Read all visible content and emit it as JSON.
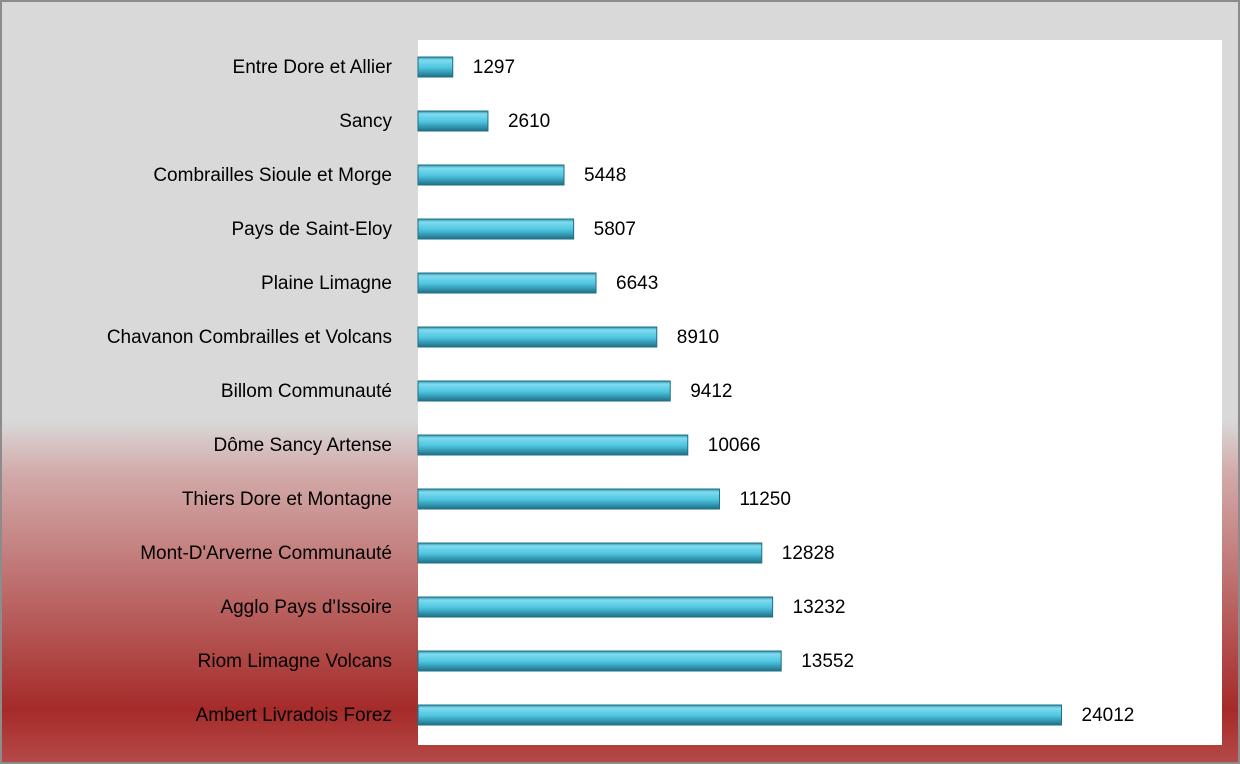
{
  "chart_data": {
    "type": "hbar",
    "categories": [
      "Entre Dore et Allier",
      "Sancy",
      "Combrailles Sioule et Morge",
      "Pays de Saint-Eloy",
      "Plaine Limagne",
      "Chavanon Combrailles et Volcans",
      "Billom Communauté",
      "Dôme Sancy Artense",
      "Thiers Dore et Montagne",
      "Mont-D'Arverne Communauté",
      "Agglo Pays d'Issoire",
      "Riom Limagne Volcans",
      "Ambert Livradois Forez"
    ],
    "values": [
      1297,
      2610,
      5448,
      5807,
      6643,
      8910,
      9412,
      10066,
      11250,
      12828,
      13232,
      13552,
      24012
    ],
    "color": "#4cc3df",
    "xlim": [
      0,
      30000
    ]
  }
}
